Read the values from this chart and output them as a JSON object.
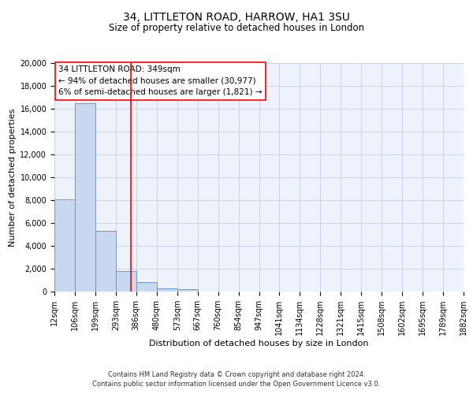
{
  "title": "34, LITTLETON ROAD, HARROW, HA1 3SU",
  "subtitle": "Size of property relative to detached houses in London",
  "xlabel": "Distribution of detached houses by size in London",
  "ylabel": "Number of detached properties",
  "bin_labels": [
    "12sqm",
    "106sqm",
    "199sqm",
    "293sqm",
    "386sqm",
    "480sqm",
    "573sqm",
    "667sqm",
    "760sqm",
    "854sqm",
    "947sqm",
    "1041sqm",
    "1134sqm",
    "1228sqm",
    "1321sqm",
    "1415sqm",
    "1508sqm",
    "1602sqm",
    "1695sqm",
    "1789sqm",
    "1882sqm"
  ],
  "bar_values": [
    8100,
    16500,
    5300,
    1800,
    800,
    300,
    200,
    0,
    0,
    0,
    0,
    0,
    0,
    0,
    0,
    0,
    0,
    0,
    0,
    0
  ],
  "bar_color": "#c8d8f0",
  "bar_edge_color": "#5b8fc9",
  "property_line_x": 3.72,
  "property_line_color": "red",
  "ylim": [
    0,
    20000
  ],
  "yticks": [
    0,
    2000,
    4000,
    6000,
    8000,
    10000,
    12000,
    14000,
    16000,
    18000,
    20000
  ],
  "annotation_title": "34 LITTLETON ROAD: 349sqm",
  "annotation_line1": "← 94% of detached houses are smaller (30,977)",
  "annotation_line2": "6% of semi-detached houses are larger (1,821) →",
  "annotation_box_color": "white",
  "annotation_box_edge_color": "red",
  "footer_line1": "Contains HM Land Registry data © Crown copyright and database right 2024.",
  "footer_line2": "Contains public sector information licensed under the Open Government Licence v3.0.",
  "background_color": "#eef2fb",
  "grid_color": "#c5cfe8",
  "title_fontsize": 10,
  "subtitle_fontsize": 8.5,
  "axis_label_fontsize": 8,
  "tick_fontsize": 7,
  "annotation_fontsize": 7.5,
  "footer_fontsize": 6
}
